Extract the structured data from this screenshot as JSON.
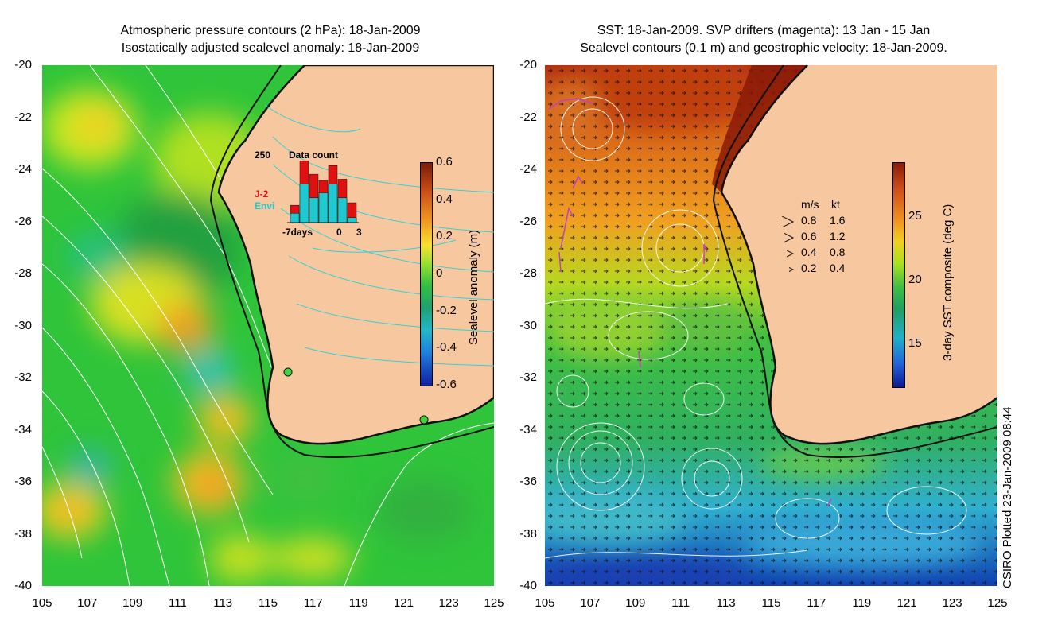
{
  "left_panel": {
    "title_line1": "Atmospheric pressure contours (2 hPa): 18-Jan-2009",
    "title_line2": "Isostatically adjusted sealevel anomaly: 18-Jan-2009",
    "colorbar": {
      "label": "Sealevel anomaly (m)",
      "ticks": [
        "0.6",
        "0.4",
        "0.2",
        "0",
        "-0.2",
        "-0.4",
        "-0.6"
      ]
    },
    "inset": {
      "title": "Data count",
      "ymax": "250",
      "series_j2": "J-2",
      "series_envi": "Envi",
      "xlabel_left": "-7days",
      "xlabel_mid": "0",
      "xlabel_right": "3",
      "bars": [
        {
          "envi": 0.15,
          "j2": 0.28
        },
        {
          "envi": 0.62,
          "j2": 1.0
        },
        {
          "envi": 0.4,
          "j2": 0.78
        },
        {
          "envi": 0.48,
          "j2": 0.68
        },
        {
          "envi": 0.62,
          "j2": 0.92
        },
        {
          "envi": 0.4,
          "j2": 0.7
        },
        {
          "envi": 0.08,
          "j2": 0.32
        }
      ]
    }
  },
  "right_panel": {
    "title_line1": "SST: 18-Jan-2009. SVP drifters (magenta): 13 Jan - 15 Jan",
    "title_line2": "Sealevel contours (0.1 m) and geostrophic velocity: 18-Jan-2009.",
    "colorbar": {
      "label": "3-day SST composite (deg C)",
      "ticks": [
        "25",
        "20",
        "15"
      ]
    },
    "velocity_key": {
      "header_ms": "m/s",
      "header_kt": "kt",
      "rows": [
        {
          "ms": "0.8",
          "kt": "1.6"
        },
        {
          "ms": "0.6",
          "kt": "1.2"
        },
        {
          "ms": "0.4",
          "kt": "0.8"
        },
        {
          "ms": "0.2",
          "kt": "0.4"
        }
      ]
    }
  },
  "axes": {
    "y_ticks": [
      "-20",
      "-22",
      "-24",
      "-26",
      "-28",
      "-30",
      "-32",
      "-34",
      "-36",
      "-38",
      "-40"
    ],
    "x_ticks": [
      "105",
      "107",
      "109",
      "111",
      "113",
      "115",
      "117",
      "119",
      "121",
      "123",
      "125"
    ]
  },
  "credit": "CSIRO Plotted 23-Jan-2009 08:44",
  "colors": {
    "land": "#f7c8a0",
    "coast": "#111111",
    "pressure_contour": "#ffffff",
    "shelf_contour": "#38d0d0",
    "drifter": "#c040c0"
  }
}
